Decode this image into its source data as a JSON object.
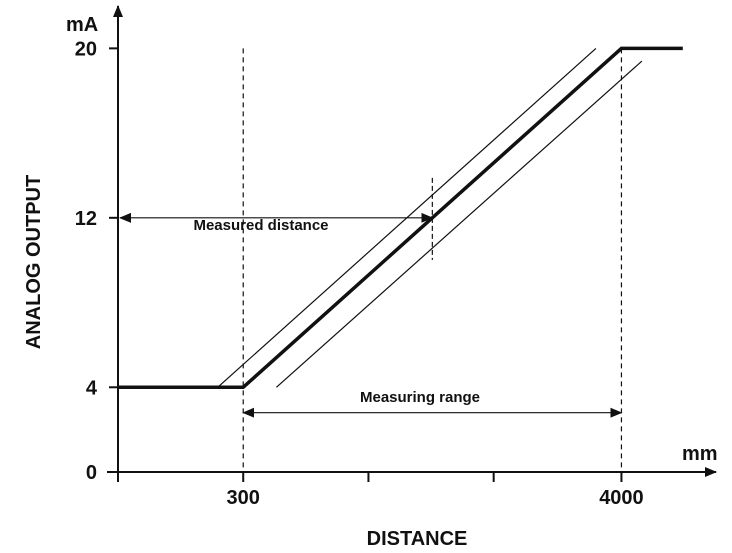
{
  "chart_data": {
    "type": "line",
    "title": "",
    "xlabel": "DISTANCE",
    "ylabel": "ANALOG OUTPUT",
    "x_unit": "mm",
    "y_unit": "mA",
    "x_tick_labels": [
      {
        "value": 300,
        "label": "300"
      },
      {
        "value": 4000,
        "label": "4000"
      }
    ],
    "x_minor_ticks": [
      1525,
      2750
    ],
    "y_ticks": [
      {
        "value": 0,
        "label": "0"
      },
      {
        "value": 4,
        "label": "4"
      },
      {
        "value": 12,
        "label": "12"
      },
      {
        "value": 20,
        "label": "20"
      }
    ],
    "xlim": [
      -925,
      4925
    ],
    "ylim": [
      0,
      22
    ],
    "series": [
      {
        "role": "output",
        "style": "thick",
        "x": [
          -925,
          300,
          4000,
          4600
        ],
        "y": [
          4,
          4,
          20,
          20
        ]
      },
      {
        "role": "upper-tolerance",
        "style": "thin",
        "x": [
          50,
          3750
        ],
        "y": [
          4,
          20
        ]
      },
      {
        "role": "lower-tolerance",
        "style": "thin",
        "x": [
          625,
          4200
        ],
        "y": [
          4,
          19.4
        ]
      }
    ],
    "annotations": {
      "measured_distance": {
        "text": "Measured distance",
        "y": 12,
        "x_from": -925,
        "x_to": 2150,
        "marker_x": 2150
      },
      "measuring_range": {
        "text": "Measuring range",
        "y": 2.8,
        "x_from": 300,
        "x_to": 4000
      },
      "dashed_guides_x": [
        300,
        4000
      ]
    },
    "grid": false,
    "legend": "none",
    "colors": {
      "ink": "#111111",
      "background": "#ffffff"
    }
  }
}
